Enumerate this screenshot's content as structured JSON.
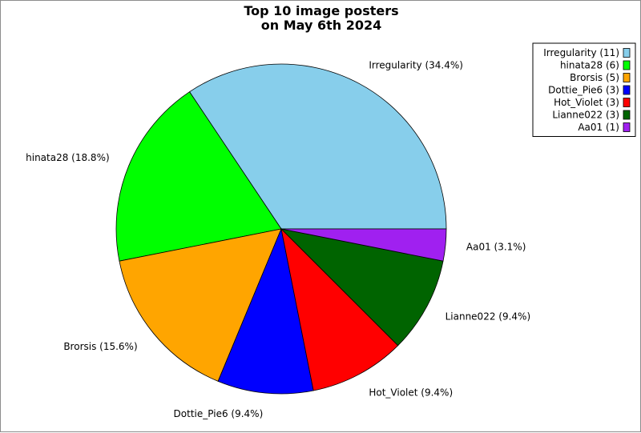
{
  "chart_data": {
    "type": "pie",
    "title": "Top 10 image posters\non May 6th 2024",
    "title_lines": [
      "Top 10 image posters",
      "on May 6th 2024"
    ],
    "legend_position": "top-right",
    "slices": [
      {
        "name": "Irregularity",
        "value": 11,
        "percent": "34.4%",
        "color": "#87ceeb",
        "label": "Irregularity (34.4%)",
        "legend": "Irregularity (11)"
      },
      {
        "name": "hinata28",
        "value": 6,
        "percent": "18.8%",
        "color": "#00ff00",
        "label": "hinata28 (18.8%)",
        "legend": "hinata28 (6)"
      },
      {
        "name": "Brorsis",
        "value": 5,
        "percent": "15.6%",
        "color": "#ffa500",
        "label": "Brorsis (15.6%)",
        "legend": "Brorsis (5)"
      },
      {
        "name": "Dottie_Pie6",
        "value": 3,
        "percent": "9.4%",
        "color": "#0000ff",
        "label": "Dottie_Pie6 (9.4%)",
        "legend": "Dottie_Pie6 (3)"
      },
      {
        "name": "Hot_Violet",
        "value": 3,
        "percent": "9.4%",
        "color": "#ff0000",
        "label": "Hot_Violet (9.4%)",
        "legend": "Hot_Violet (3)"
      },
      {
        "name": "Lianne022",
        "value": 3,
        "percent": "9.4%",
        "color": "#006400",
        "label": "Lianne022 (9.4%)",
        "legend": "Lianne022 (3)"
      },
      {
        "name": "Aa01",
        "value": 1,
        "percent": "3.1%",
        "color": "#a020f0",
        "label": "Aa01 (3.1%)",
        "legend": "Aa01 (1)"
      }
    ]
  }
}
